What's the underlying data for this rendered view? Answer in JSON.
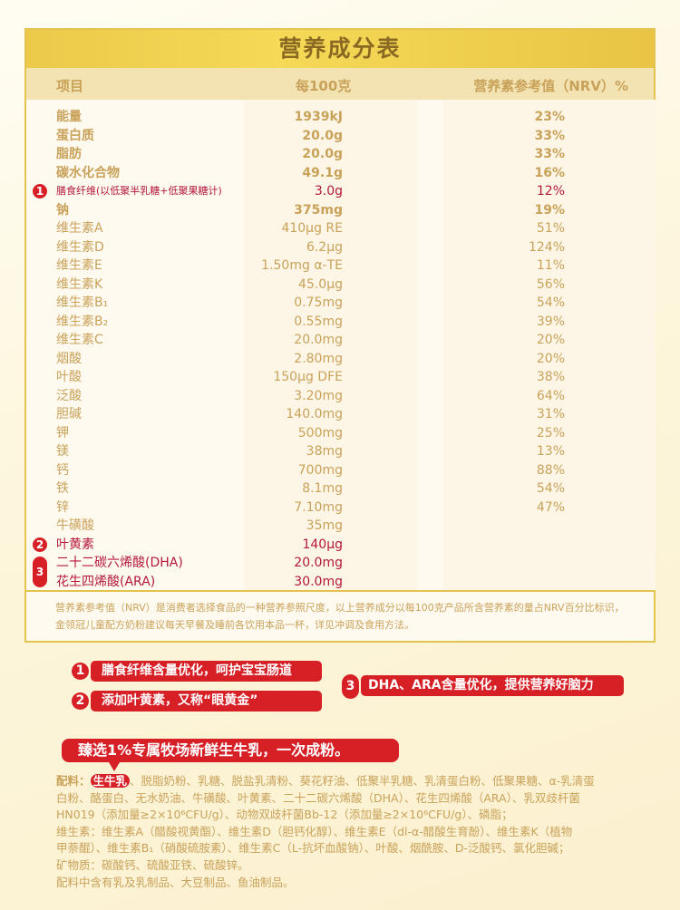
{
  "title": "营养成分表",
  "headers": {
    "item": "项目",
    "per100": "每100克",
    "nrv": "营养素参考值（NRV）%"
  },
  "rows": [
    {
      "name": "能量",
      "value": "1939kJ",
      "nrv": "23%",
      "bold": true
    },
    {
      "name": "蛋白质",
      "value": "20.0g",
      "nrv": "33%",
      "bold": true
    },
    {
      "name": "脂肪",
      "value": "20.0g",
      "nrv": "33%",
      "bold": true
    },
    {
      "name": "碳水化合物",
      "value": "49.1g",
      "nrv": "16%",
      "bold": true
    },
    {
      "name": "膳食纤维(以低聚半乳糖+低聚果糖计)",
      "value": "3.0g",
      "nrv": "12%",
      "red": true,
      "badge": "1"
    },
    {
      "name": "钠",
      "value": "375mg",
      "nrv": "19%",
      "bold": true
    },
    {
      "name": "维生素A",
      "value": "410μg RE",
      "nrv": "51%"
    },
    {
      "name": "维生素D",
      "value": "6.2μg",
      "nrv": "124%"
    },
    {
      "name": "维生素E",
      "value": "1.50mg α-TE",
      "nrv": "11%"
    },
    {
      "name": "维生素K",
      "value": "45.0μg",
      "nrv": "56%"
    },
    {
      "name": "维生素B₁",
      "value": "0.75mg",
      "nrv": "54%"
    },
    {
      "name": "维生素B₂",
      "value": "0.55mg",
      "nrv": "39%"
    },
    {
      "name": "维生素C",
      "value": "20.0mg",
      "nrv": "20%"
    },
    {
      "name": "烟酸",
      "value": "2.80mg",
      "nrv": "20%"
    },
    {
      "name": "叶酸",
      "value": "150μg DFE",
      "nrv": "38%"
    },
    {
      "name": "泛酸",
      "value": "3.20mg",
      "nrv": "64%"
    },
    {
      "name": "胆碱",
      "value": "140.0mg",
      "nrv": "31%"
    },
    {
      "name": "钾",
      "value": "500mg",
      "nrv": "25%"
    },
    {
      "name": "镁",
      "value": "38mg",
      "nrv": "13%"
    },
    {
      "name": "钙",
      "value": "700mg",
      "nrv": "88%"
    },
    {
      "name": "铁",
      "value": "8.1mg",
      "nrv": "54%"
    },
    {
      "name": "锌",
      "value": "7.10mg",
      "nrv": "47%"
    },
    {
      "name": "牛磺酸",
      "value": "35mg",
      "nrv": ""
    },
    {
      "name": "叶黄素",
      "value": "140μg",
      "nrv": "",
      "red": true,
      "badge": "2"
    },
    {
      "name": "二十二碳六烯酸(DHA)",
      "value": "20.0mg",
      "nrv": "",
      "red": true,
      "badge": "3"
    },
    {
      "name": "花生四烯酸(ARA)",
      "value": "30.0mg",
      "nrv": "",
      "red": true
    }
  ],
  "footnote": "营养素参考值（NRV）是消费者选择食品的一种营养参照尺度，以上营养成分以每100克产品所含营养素的量占NRV百分比标识，金领冠儿童配方奶粉建议每天早餐及睡前各饮用本品一杯，详见冲调及食用方法。",
  "callouts": [
    {
      "num": "1",
      "text": "膳食纤维含量优化，呵护宝宝肠道"
    },
    {
      "num": "2",
      "text": "添加叶黄素，又称“眼黄金”"
    },
    {
      "num": "3",
      "text": "DHA、ARA含量优化，提供营养好脑力"
    }
  ],
  "banner": "臻选1%专属牧场新鲜生牛乳，一次成粉。",
  "ingredients": {
    "label": "配料：",
    "highlight": "生牛乳",
    "lines": [
      "、脱脂奶粉、乳糖、脱盐乳清粉、葵花籽油、低聚半乳糖、乳清蛋白粉、低聚果糖、α-乳清蛋",
      "白粉、酪蛋白、无水奶油、牛磺酸、叶黄素、二十二碳六烯酸（DHA）、花生四烯酸（ARA）、乳双歧杆菌",
      "HN019（添加量≥2×10⁶CFU/g）、动物双歧杆菌Bb-12（添加量≥2×10⁶CFU/g）、磷脂；",
      "维生素：维生素A（醋酸视黄酯）、维生素D（胆钙化醇）、维生素E（dl-α-醋酸生育酚）、维生素K（植物",
      "甲萘醌）、维生素B₁（硝酸硫胺素）、维生素C（L-抗坏血酸钠）、叶酸、烟酰胺、D-泛酸钙、氯化胆碱；",
      "矿物质：碳酸钙、硫酸亚铁、硫酸锌。",
      "配料中含有乳及乳制品、大豆制品、鱼油制品。"
    ]
  },
  "colors": {
    "gold_text": "#c9a25a",
    "red": "#d71f26",
    "crimson": "#b3183a",
    "title_band": "#f5d957"
  }
}
